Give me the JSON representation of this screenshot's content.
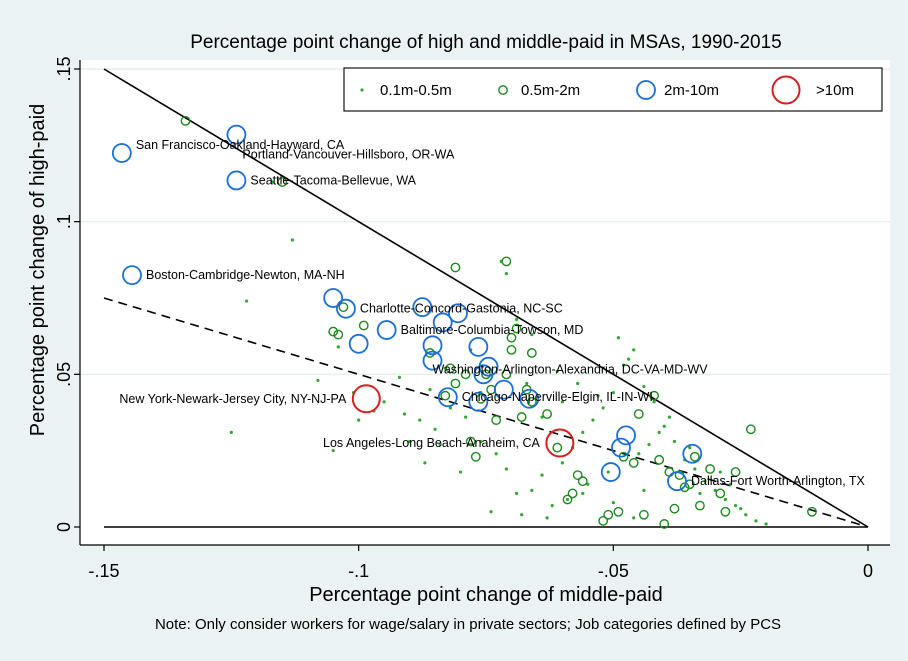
{
  "colors": {
    "background": "#eaf2f3",
    "plot_bg": "#ffffff",
    "grid": "#e6eeef",
    "small": "#2ea82e",
    "medium": "#1a8a1a",
    "large": "#1a6fd6",
    "xlarge": "#d62020"
  },
  "chart_data": {
    "type": "scatter",
    "title": "Percentage point change of high and middle-paid in MSAs, 1990-2015",
    "xlabel": "Percentage point change of middle-paid",
    "ylabel": "Percentage point change of high-paid",
    "note": "Note: Only consider workers for wage/salary in private sectors; Job categories defined by PCS",
    "xlim": [
      -0.15,
      0
    ],
    "ylim": [
      0,
      0.15
    ],
    "xticks": [
      {
        "v": -0.15,
        "label": "-.15"
      },
      {
        "v": -0.1,
        "label": "-.1"
      },
      {
        "v": -0.05,
        "label": "-.05"
      },
      {
        "v": 0,
        "label": "0"
      }
    ],
    "yticks": [
      {
        "v": 0,
        "label": "0"
      },
      {
        "v": 0.05,
        "label": ".05"
      },
      {
        "v": 0.1,
        "label": ".1"
      },
      {
        "v": 0.15,
        "label": ".15"
      }
    ],
    "grid": true,
    "legend": {
      "position": "top-right",
      "entries": [
        {
          "key": "small",
          "label": "0.1m-0.5m"
        },
        {
          "key": "medium",
          "label": "0.5m-2m"
        },
        {
          "key": "large",
          "label": "2m-10m"
        },
        {
          "key": "xlarge",
          "label": ">10m"
        }
      ]
    },
    "lines": [
      {
        "name": "solid",
        "style": "solid",
        "x": [
          -0.15,
          0
        ],
        "y": [
          0.15,
          0
        ]
      },
      {
        "name": "dashed",
        "style": "dashed",
        "x": [
          -0.15,
          0
        ],
        "y": [
          0.075,
          0
        ]
      },
      {
        "name": "zero",
        "style": "solid",
        "x": [
          -0.15,
          0
        ],
        "y": [
          0,
          0
        ]
      }
    ],
    "labeled_points": [
      {
        "label": "San Francisco-Oakland-Hayward, CA",
        "x": -0.1465,
        "y": 0.1225,
        "size": "large",
        "label_dx": 14,
        "label_dy": -4
      },
      {
        "label": "Portland-Vancouver-Hillsboro, OR-WA",
        "x": -0.124,
        "y": 0.1285,
        "size": "large",
        "label_dx": 6,
        "label_dy": 24
      },
      {
        "label": "Seattle-Tacoma-Bellevue, WA",
        "x": -0.124,
        "y": 0.1135,
        "size": "large",
        "label_dx": 14,
        "label_dy": 4
      },
      {
        "label": "Boston-Cambridge-Newton, MA-NH",
        "x": -0.1445,
        "y": 0.0825,
        "size": "large",
        "label_dx": 14,
        "label_dy": 4
      },
      {
        "label": "Charlotte-Concord-Gastonia, NC-SC",
        "x": -0.1025,
        "y": 0.0715,
        "size": "large",
        "label_dx": 14,
        "label_dy": 4
      },
      {
        "label": "Baltimore-Columbia-Towson, MD",
        "x": -0.0945,
        "y": 0.0645,
        "size": "large",
        "label_dx": 14,
        "label_dy": 4
      },
      {
        "label": "Washington-Arlington-Alexandria, DC-VA-MD-WV",
        "x": -0.0855,
        "y": 0.0545,
        "size": "large",
        "label_dx": 0,
        "label_dy": 13
      },
      {
        "label": "New York-Newark-Jersey City, NY-NJ-PA",
        "x": -0.0985,
        "y": 0.042,
        "size": "xlarge",
        "label_dx": -20,
        "label_dy": 4,
        "anchor": "end"
      },
      {
        "label": "Chicago-Naperville-Elgin, IL-IN-WI",
        "x": -0.0825,
        "y": 0.0425,
        "size": "large",
        "label_dx": 14,
        "label_dy": 4
      },
      {
        "label": "Los Angeles-Long Beach-Anaheim, CA",
        "x": -0.0605,
        "y": 0.0275,
        "size": "xlarge",
        "label_dx": -20,
        "label_dy": 4,
        "anchor": "end"
      },
      {
        "label": "Dallas-Fort Worth-Arlington, TX",
        "x": -0.0375,
        "y": 0.015,
        "size": "large",
        "label_dx": 14,
        "label_dy": 4
      }
    ],
    "series": [
      {
        "name": "0.1m-0.5m",
        "size": "small",
        "points": [
          [
            -0.113,
            0.094
          ],
          [
            -0.122,
            0.074
          ],
          [
            -0.125,
            0.031
          ],
          [
            -0.105,
            0.025
          ],
          [
            -0.108,
            0.048
          ],
          [
            -0.104,
            0.059
          ],
          [
            -0.101,
            0.044
          ],
          [
            -0.095,
            0.041
          ],
          [
            -0.091,
            0.037
          ],
          [
            -0.088,
            0.035
          ],
          [
            -0.085,
            0.032
          ],
          [
            -0.082,
            0.039
          ],
          [
            -0.079,
            0.036
          ],
          [
            -0.076,
            0.028
          ],
          [
            -0.073,
            0.024
          ],
          [
            -0.071,
            0.019
          ],
          [
            -0.069,
            0.011
          ],
          [
            -0.068,
            0.004
          ],
          [
            -0.066,
            0.012
          ],
          [
            -0.064,
            0.017
          ],
          [
            -0.062,
            0.007
          ],
          [
            -0.06,
            0.021
          ],
          [
            -0.058,
            0.026
          ],
          [
            -0.056,
            0.031
          ],
          [
            -0.054,
            0.035
          ],
          [
            -0.052,
            0.039
          ],
          [
            -0.05,
            0.044
          ],
          [
            -0.048,
            0.053
          ],
          [
            -0.046,
            0.058
          ],
          [
            -0.044,
            0.046
          ],
          [
            -0.042,
            0.041
          ],
          [
            -0.04,
            0.033
          ],
          [
            -0.038,
            0.028
          ],
          [
            -0.036,
            0.022
          ],
          [
            -0.034,
            0.019
          ],
          [
            -0.032,
            0.015
          ],
          [
            -0.03,
            0.012
          ],
          [
            -0.028,
            0.009
          ],
          [
            -0.026,
            0.007
          ],
          [
            -0.024,
            0.004
          ],
          [
            -0.022,
            0.002
          ],
          [
            -0.02,
            0.001
          ],
          [
            -0.061,
            0.051
          ],
          [
            -0.057,
            0.047
          ],
          [
            -0.053,
            0.043
          ],
          [
            -0.049,
            0.062
          ],
          [
            -0.047,
            0.055
          ],
          [
            -0.066,
            0.063
          ],
          [
            -0.069,
            0.068
          ],
          [
            -0.071,
            0.083
          ],
          [
            -0.072,
            0.087
          ],
          [
            -0.078,
            0.058
          ],
          [
            -0.083,
            0.052
          ],
          [
            -0.086,
            0.045
          ],
          [
            -0.09,
            0.028
          ],
          [
            -0.097,
            0.038
          ],
          [
            -0.1,
            0.035
          ],
          [
            -0.074,
            0.005
          ],
          [
            -0.063,
            0.003
          ],
          [
            -0.059,
            0.009
          ],
          [
            -0.055,
            0.014
          ],
          [
            -0.051,
            0.018
          ],
          [
            -0.045,
            0.024
          ],
          [
            -0.043,
            0.027
          ],
          [
            -0.041,
            0.031
          ],
          [
            -0.039,
            0.036
          ],
          [
            -0.035,
            0.026
          ],
          [
            -0.033,
            0.011
          ],
          [
            -0.029,
            0.018
          ],
          [
            -0.027,
            0.014
          ],
          [
            -0.025,
            0.006
          ],
          [
            -0.067,
            0.047
          ],
          [
            -0.064,
            0.036
          ],
          [
            -0.06,
            0.041
          ],
          [
            -0.056,
            0.011
          ],
          [
            -0.05,
            0.008
          ],
          [
            -0.046,
            0.003
          ],
          [
            -0.044,
            0.012
          ],
          [
            -0.076,
            0.044
          ],
          [
            -0.08,
            0.018
          ],
          [
            -0.084,
            0.027
          ],
          [
            -0.087,
            0.021
          ],
          [
            -0.117,
            0.113
          ],
          [
            -0.092,
            0.049
          ]
        ]
      },
      {
        "name": "0.5m-2m",
        "size": "medium",
        "points": [
          [
            -0.134,
            0.133
          ],
          [
            -0.115,
            0.113
          ],
          [
            -0.081,
            0.085
          ],
          [
            -0.071,
            0.087
          ],
          [
            -0.103,
            0.072
          ],
          [
            -0.105,
            0.064
          ],
          [
            -0.104,
            0.063
          ],
          [
            -0.099,
            0.066
          ],
          [
            -0.069,
            0.065
          ],
          [
            -0.07,
            0.062
          ],
          [
            -0.066,
            0.057
          ],
          [
            -0.07,
            0.058
          ],
          [
            -0.079,
            0.05
          ],
          [
            -0.081,
            0.047
          ],
          [
            -0.082,
            0.052
          ],
          [
            -0.086,
            0.057
          ],
          [
            -0.075,
            0.05
          ],
          [
            -0.071,
            0.05
          ],
          [
            -0.067,
            0.045
          ],
          [
            -0.066,
            0.041
          ],
          [
            -0.076,
            0.042
          ],
          [
            -0.078,
            0.028
          ],
          [
            -0.077,
            0.023
          ],
          [
            -0.074,
            0.045
          ],
          [
            -0.068,
            0.036
          ],
          [
            -0.063,
            0.037
          ],
          [
            -0.061,
            0.026
          ],
          [
            -0.058,
            0.011
          ],
          [
            -0.057,
            0.017
          ],
          [
            -0.059,
            0.009
          ],
          [
            -0.052,
            0.002
          ],
          [
            -0.051,
            0.004
          ],
          [
            -0.049,
            0.005
          ],
          [
            -0.048,
            0.023
          ],
          [
            -0.046,
            0.021
          ],
          [
            -0.045,
            0.037
          ],
          [
            -0.044,
            0.004
          ],
          [
            -0.042,
            0.043
          ],
          [
            -0.041,
            0.022
          ],
          [
            -0.04,
            0.001
          ],
          [
            -0.039,
            0.018
          ],
          [
            -0.038,
            0.006
          ],
          [
            -0.037,
            0.017
          ],
          [
            -0.036,
            0.013
          ],
          [
            -0.035,
            0.014
          ],
          [
            -0.033,
            0.007
          ],
          [
            -0.031,
            0.019
          ],
          [
            -0.029,
            0.011
          ],
          [
            -0.028,
            0.005
          ],
          [
            -0.026,
            0.018
          ],
          [
            -0.023,
            0.032
          ],
          [
            -0.011,
            0.005
          ],
          [
            -0.083,
            0.043
          ],
          [
            -0.073,
            0.035
          ],
          [
            -0.056,
            0.015
          ],
          [
            -0.034,
            0.023
          ]
        ]
      },
      {
        "name": "2m-10m",
        "size": "large",
        "points": [
          [
            -0.105,
            0.075
          ],
          [
            -0.1,
            0.06
          ],
          [
            -0.0875,
            0.072
          ],
          [
            -0.0835,
            0.067
          ],
          [
            -0.0805,
            0.07
          ],
          [
            -0.0855,
            0.0595
          ],
          [
            -0.0765,
            0.059
          ],
          [
            -0.0745,
            0.0525
          ],
          [
            -0.0755,
            0.05
          ],
          [
            -0.0715,
            0.045
          ],
          [
            -0.0665,
            0.042
          ],
          [
            -0.0765,
            0.041
          ],
          [
            -0.0475,
            0.03
          ],
          [
            -0.0485,
            0.026
          ],
          [
            -0.0345,
            0.024
          ],
          [
            -0.0505,
            0.018
          ]
        ]
      }
    ]
  }
}
